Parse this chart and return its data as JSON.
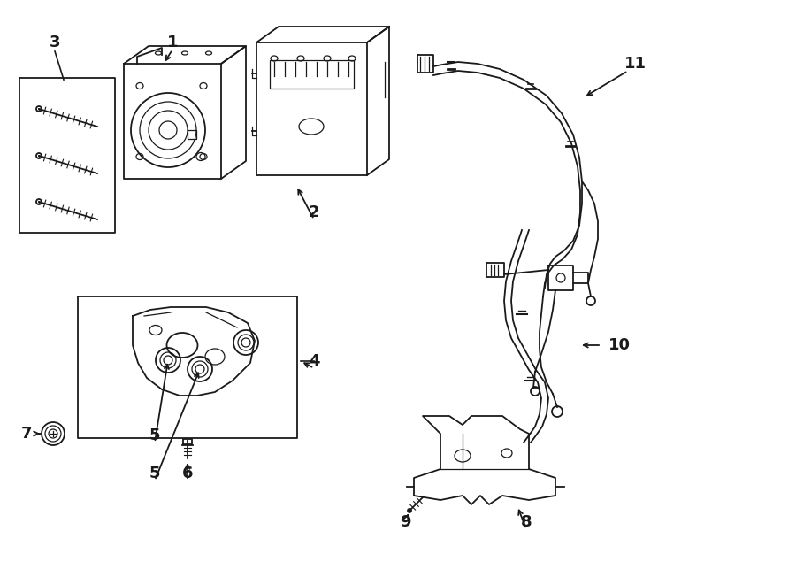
{
  "bg_color": "#ffffff",
  "lc": "#1a1a1a",
  "lw_thick": 1.8,
  "lw_med": 1.3,
  "lw_thin": 0.9,
  "label_fs": 13
}
